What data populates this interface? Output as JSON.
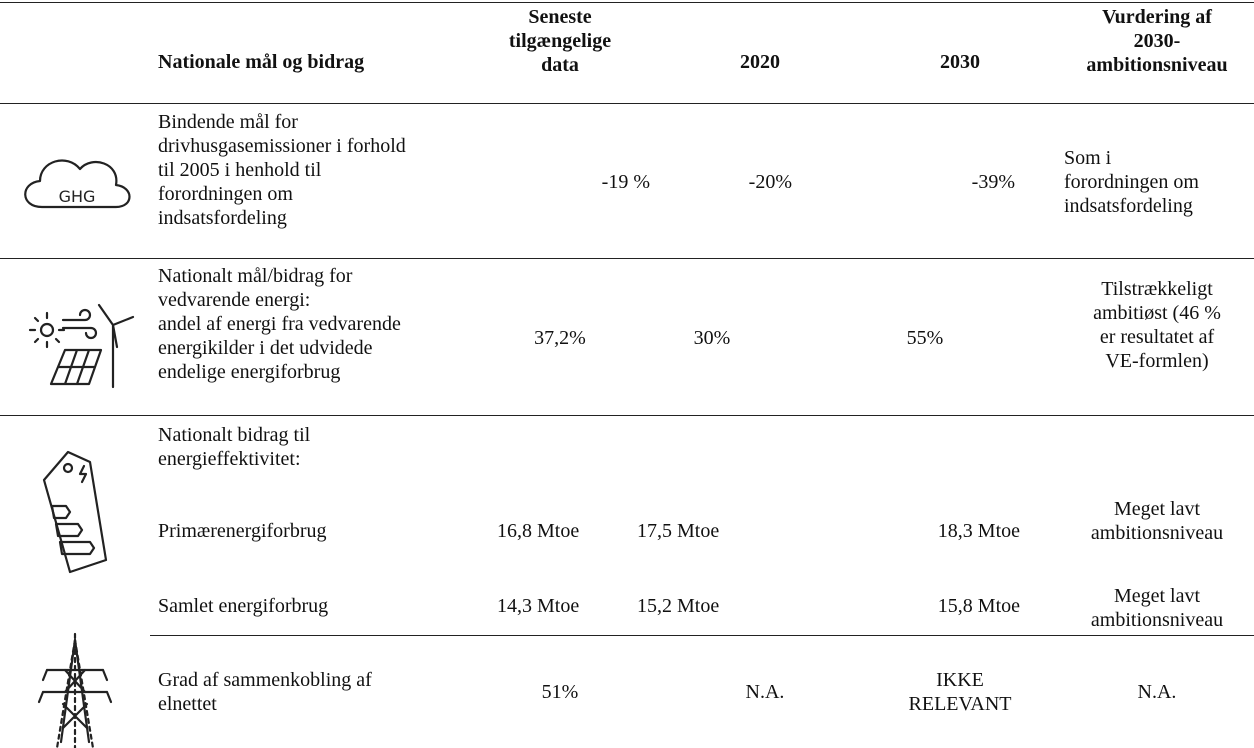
{
  "table": {
    "header": [
      "Nationale mål og bidrag",
      "Seneste\ntilgængelige\ndata",
      "2020",
      "2030",
      "Vurdering af\n2030-\nambitionsniveau"
    ],
    "rows": [
      {
        "icon_label": "GHG",
        "label": "Bindende mål for\ndrivhusgasemissioner i forhold\ntil 2005 i henhold til\nforordningen om\nindsatsfordeling",
        "values": [
          "-19 %",
          "-20%",
          "-39%"
        ],
        "assessment": "Som i\nforordningen om\nindsatsfordeling"
      },
      {
        "label": "Nationalt mål/bidrag for\nvedvarende energi:\nandel af energi fra vedvarende\nenergikilder i det udvidede\nendelige energiforbrug",
        "values": [
          "37,2%",
          "30%",
          "55%"
        ],
        "assessment": "Tilstrækkeligt\nambitiøst (46 %\ner resultatet af\nVE-formlen)"
      },
      {
        "label": "Nationalt bidrag til\nenergieffektivitet:",
        "subrows": [
          {
            "label": "Primærenergiforbrug",
            "values": [
              "16,8 Mtoe",
              "17,5 Mtoe",
              "18,3 Mtoe"
            ],
            "assessment": "Meget lavt\nambitionsniveau"
          },
          {
            "label": "Samlet energiforbrug",
            "values": [
              "14,3 Mtoe",
              "15,2 Mtoe",
              "15,8 Mtoe"
            ],
            "assessment": "Meget lavt\nambitionsniveau"
          }
        ]
      },
      {
        "label": "Grad af sammenkobling af\nelnettet",
        "values": [
          "51%",
          "N.A.",
          "IKKE\nRELEVANT"
        ],
        "assessment": "N.A."
      }
    ]
  }
}
